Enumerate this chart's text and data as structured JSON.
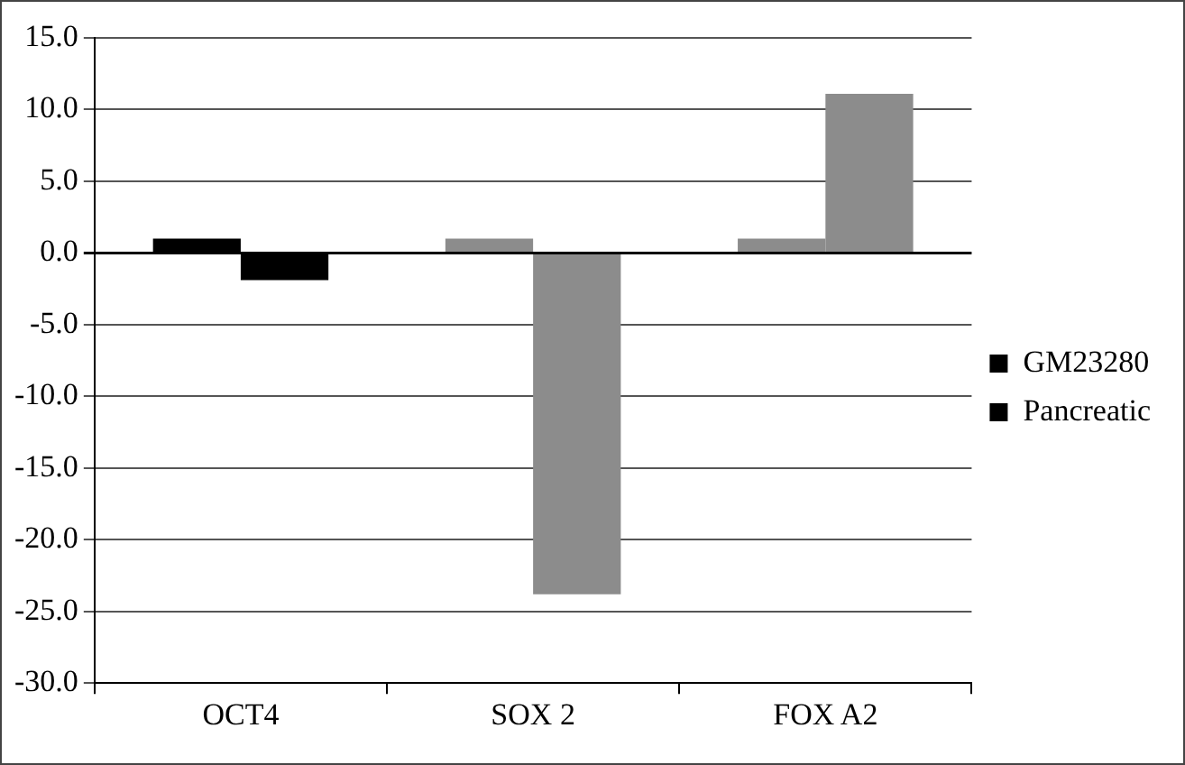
{
  "chart_data": {
    "type": "bar",
    "categories": [
      "OCT4",
      "SOX 2",
      "FOX A2"
    ],
    "series": [
      {
        "name": "GM23280",
        "color": "#000000",
        "colors": [
          "#000000",
          "#8c8c8c",
          "#8c8c8c"
        ],
        "values": [
          1.0,
          1.0,
          1.0
        ]
      },
      {
        "name": "Pancreatic",
        "color": "#000000",
        "colors": [
          "#000000",
          "#8c8c8c",
          "#8c8c8c"
        ],
        "values": [
          -1.9,
          -23.8,
          11.1
        ]
      }
    ],
    "ylim": [
      -30,
      15
    ],
    "yticks": [
      {
        "value": -30,
        "label": "-30.0"
      },
      {
        "value": -25,
        "label": "-25.0"
      },
      {
        "value": -20,
        "label": "-20.0"
      },
      {
        "value": -15,
        "label": "-15.0"
      },
      {
        "value": -10,
        "label": "-10.0"
      },
      {
        "value": -5,
        "label": "-5.0"
      },
      {
        "value": 0,
        "label": "0.0"
      },
      {
        "value": 5,
        "label": "5.0"
      },
      {
        "value": 10,
        "label": "10.0"
      },
      {
        "value": 15,
        "label": "15.0"
      }
    ],
    "grid": "y",
    "legend": "right"
  }
}
